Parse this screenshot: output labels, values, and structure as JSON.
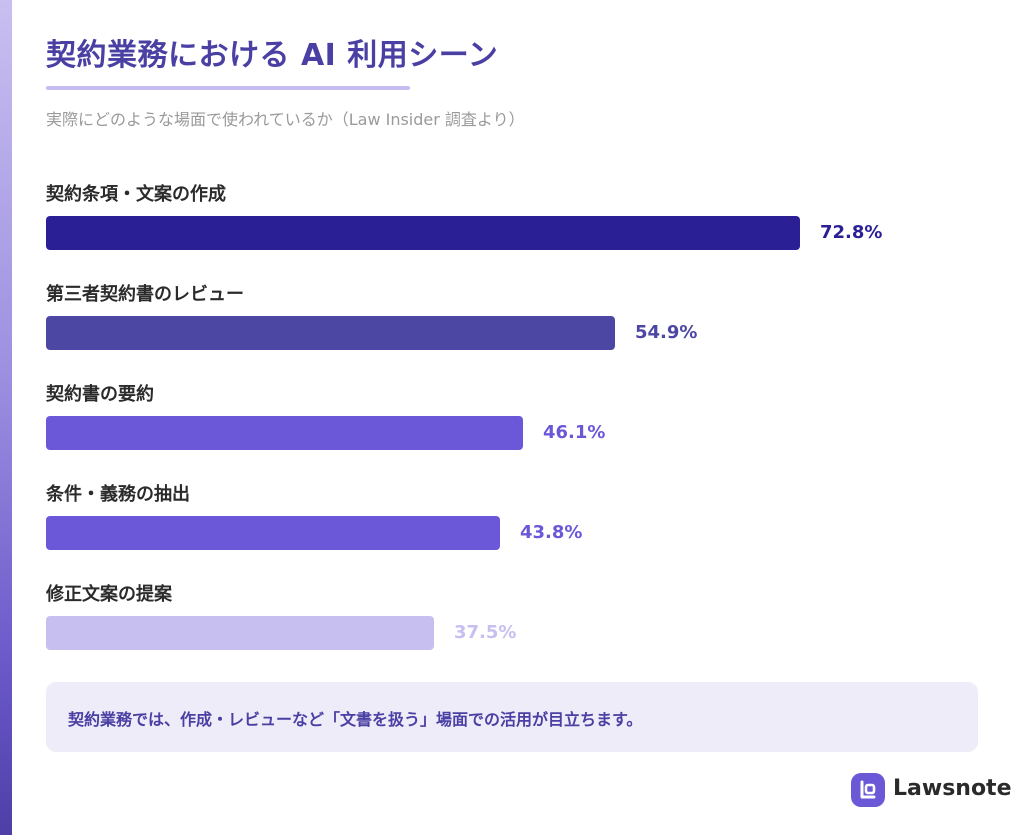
{
  "title": "契約業務における AI 利用シーン",
  "subtitle": "実際にどのような場面で使われているか（Law Insider 調査より）",
  "chart_data": {
    "type": "bar",
    "orientation": "horizontal",
    "categories": [
      "契約条項・文案の作成",
      "第三者契約書のレビュー",
      "契約書の要約",
      "条件・義務の抽出",
      "修正文案の提案"
    ],
    "values": [
      72.8,
      54.9,
      46.1,
      43.8,
      37.5
    ],
    "value_labels": [
      "72.8%",
      "54.9%",
      "46.1%",
      "43.8%",
      "37.5%"
    ],
    "bar_colors": [
      "#2b1f96",
      "#4b47a3",
      "#6a58d8",
      "#6a58d8",
      "#c7bff0"
    ],
    "label_colors": [
      "#2b1f96",
      "#4b47a3",
      "#6a58d8",
      "#6a58d8",
      "#c7bff0"
    ],
    "unit": "%",
    "grid": false,
    "legend": "none"
  },
  "note": "契約業務では、作成・レビューなど「文書を扱う」場面での活用が目立ちます。",
  "brand": {
    "name": "Lawsnote",
    "logo_icon": "lawsnote-logo-icon",
    "logo_color": "#6a58d6"
  }
}
